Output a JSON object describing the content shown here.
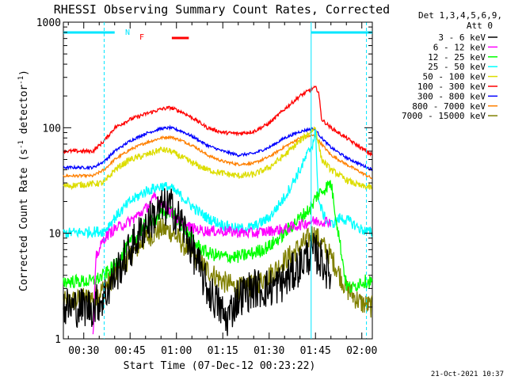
{
  "chart_data": {
    "type": "line",
    "title": "RHESSI Observing Summary Count Rates, Corrected",
    "xlabel": "Start Time (07-Dec-12 00:23:22)",
    "ylabel": "Corrected Count Rate (s",
    "ylabel_sup1": "-1",
    "ylabel_mid": " detector",
    "ylabel_sup2": "-1",
    "ylabel_end": ")",
    "y_scale": "log",
    "ylim": [
      1,
      1000
    ],
    "xlim_minutes": [
      23.4,
      123.4
    ],
    "x_ticks": [
      {
        "min": 30,
        "label": "00:30"
      },
      {
        "min": 45,
        "label": "00:45"
      },
      {
        "min": 60,
        "label": "01:00"
      },
      {
        "min": 75,
        "label": "01:15"
      },
      {
        "min": 90,
        "label": "01:30"
      },
      {
        "min": 105,
        "label": "01:45"
      },
      {
        "min": 120,
        "label": "02:00"
      }
    ],
    "y_ticks": [
      {
        "value": 1,
        "label": "1"
      },
      {
        "value": 10,
        "label": "10"
      },
      {
        "value": 100,
        "label": "100"
      },
      {
        "value": 1000,
        "label": "1000"
      }
    ],
    "legend_title_1": "Det 1,3,4,5,6,9,",
    "legend_title_2": "Att 0",
    "legend_placement": "right",
    "series": [
      {
        "name": "3 - 6 keV",
        "color": "#000000",
        "x": [
          23.4,
          33,
          36.6,
          40,
          45,
          50,
          55,
          58,
          62,
          66,
          70,
          74,
          76,
          80,
          85,
          90,
          95,
          100,
          102,
          104,
          105,
          107,
          110
        ],
        "y": [
          2,
          2,
          2.5,
          4,
          7,
          12,
          17,
          18,
          12,
          6,
          3,
          2,
          1.5,
          2.5,
          3,
          3,
          3.5,
          5,
          6,
          6.5,
          6.5,
          5.5,
          4
        ]
      },
      {
        "name": "6 - 12 keV",
        "color": "#ff00ff",
        "x": [
          33,
          34,
          36.6,
          40,
          45,
          50,
          53,
          55,
          58,
          62,
          66,
          70,
          75,
          80,
          85,
          90,
          95,
          100,
          104,
          107,
          110
        ],
        "y": [
          1,
          6,
          9,
          11,
          13,
          17,
          22,
          20,
          16,
          12,
          11,
          10.5,
          10.5,
          10.2,
          10,
          10.5,
          11,
          12,
          13,
          13,
          13
        ]
      },
      {
        "name": "12 - 25 keV",
        "color": "#00ff00",
        "x": [
          23.4,
          33,
          36.6,
          40,
          45,
          50,
          55,
          58,
          62,
          66,
          70,
          75,
          80,
          85,
          90,
          95,
          100,
          104,
          105,
          107,
          110,
          115,
          117,
          119.5,
          121,
          123.4
        ],
        "y": [
          3.5,
          3.5,
          4,
          5,
          8,
          12,
          15,
          16,
          12,
          8,
          6.5,
          6,
          6,
          6.5,
          7.5,
          10,
          14,
          18,
          22,
          25,
          30,
          3.2,
          3,
          3.5,
          3.5,
          3.5
        ]
      },
      {
        "name": "25 - 50 keV",
        "color": "#00ffff",
        "x": [
          23.4,
          36.6,
          40,
          45,
          50,
          55,
          58,
          62,
          66,
          70,
          75,
          80,
          85,
          90,
          95,
          100,
          104,
          105,
          106,
          108,
          110,
          113,
          116,
          119.5,
          123.4
        ],
        "y": [
          10,
          10.5,
          14,
          20,
          25,
          28,
          27,
          22,
          17,
          14,
          12,
          11,
          11.5,
          14,
          22,
          40,
          70,
          90,
          20,
          14,
          12,
          14,
          13,
          11,
          10
        ]
      },
      {
        "name": "50 - 100 keV",
        "color": "#dddd00",
        "x": [
          23.4,
          36.6,
          40,
          45,
          50,
          55,
          58,
          62,
          66,
          70,
          75,
          80,
          85,
          90,
          95,
          100,
          104,
          105,
          107,
          110,
          115,
          119.5,
          123.4
        ],
        "y": [
          28,
          30,
          40,
          50,
          55,
          62,
          60,
          52,
          45,
          40,
          37,
          35,
          36,
          42,
          55,
          75,
          95,
          100,
          50,
          40,
          32,
          28,
          27
        ]
      },
      {
        "name": "100 - 300 keV",
        "color": "#ff0000",
        "x": [
          23.4,
          33,
          36.6,
          40,
          45,
          50,
          55,
          58,
          62,
          66,
          70,
          75,
          80,
          85,
          90,
          95,
          100,
          104,
          105,
          106,
          107,
          110,
          115,
          119.5,
          123.4
        ],
        "y": [
          60,
          60,
          75,
          100,
          120,
          135,
          150,
          155,
          140,
          120,
          100,
          90,
          88,
          92,
          110,
          150,
          200,
          235,
          240,
          220,
          120,
          100,
          80,
          65,
          55
        ]
      },
      {
        "name": "300 - 800 keV",
        "color": "#0000ff",
        "x": [
          23.4,
          33,
          36.6,
          40,
          45,
          50,
          55,
          58,
          62,
          66,
          70,
          75,
          80,
          85,
          90,
          95,
          100,
          104,
          105,
          107,
          110,
          115,
          119.5,
          123.4
        ],
        "y": [
          42,
          42,
          48,
          60,
          75,
          88,
          98,
          100,
          92,
          80,
          68,
          60,
          55,
          57,
          65,
          80,
          92,
          98,
          95,
          80,
          65,
          52,
          45,
          40
        ]
      },
      {
        "name": "800 - 7000 keV",
        "color": "#ff8000",
        "x": [
          23.4,
          33,
          36.6,
          40,
          45,
          50,
          55,
          58,
          62,
          66,
          70,
          75,
          80,
          85,
          90,
          95,
          100,
          104,
          105,
          107,
          110,
          115,
          119.5,
          123.4
        ],
        "y": [
          35,
          35,
          40,
          50,
          62,
          72,
          80,
          82,
          75,
          66,
          55,
          48,
          45,
          46,
          53,
          66,
          80,
          85,
          82,
          70,
          55,
          45,
          38,
          33
        ]
      },
      {
        "name": "7000 - 15000 keV",
        "color": "#808000",
        "x": [
          23.4,
          33,
          36.6,
          40,
          45,
          50,
          55,
          58,
          62,
          66,
          70,
          75,
          80,
          85,
          90,
          95,
          100,
          103,
          104,
          105,
          107,
          110,
          115,
          119.5,
          123.4
        ],
        "y": [
          2.2,
          2.5,
          3,
          4,
          6,
          9,
          11,
          10.5,
          8,
          6,
          4.5,
          3.5,
          3,
          3.2,
          4,
          5.5,
          7.5,
          9,
          10,
          9.5,
          8,
          6,
          3,
          2.2,
          2
        ]
      }
    ],
    "annotations": {
      "flag_n_label": "N",
      "flag_f_label": "F",
      "cyan_bars_minutes": [
        [
          23.4,
          40
        ],
        [
          103.6,
          123.4
        ]
      ],
      "cyan_solid_lines_minutes": [
        103.6
      ],
      "cyan_dashed_lines_minutes": [
        36.6,
        121.5
      ],
      "red_bar_minutes": [
        58.5,
        64
      ]
    },
    "grid": false,
    "footer_date": "21-Oct-2021 10:37"
  }
}
